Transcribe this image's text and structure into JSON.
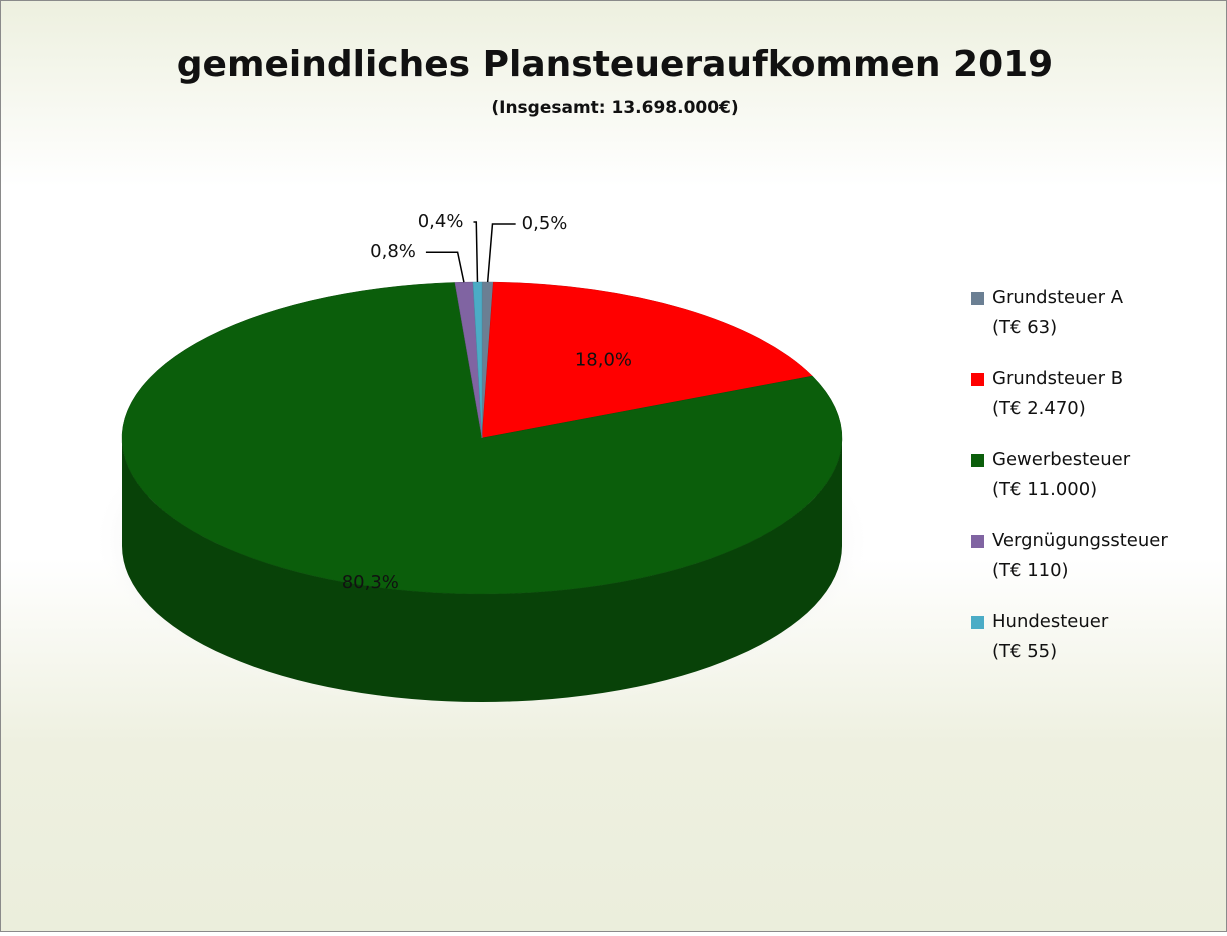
{
  "chart_data": {
    "type": "pie",
    "title": "gemeindliches Plansteueraufkommen 2019",
    "subtitle": "(Insgesamt: 13.698.000€)",
    "categories": [
      "Grundsteuer A",
      "Grundsteuer B",
      "Gewerbesteuer",
      "Vergnügungssteuer",
      "Hundesteuer"
    ],
    "legend_details": [
      "(T€ 63)",
      "(T€ 2.470)",
      "(T€ 11.000)",
      "(T€ 110)",
      "(T€ 55)"
    ],
    "values": [
      0.5,
      18.0,
      80.3,
      0.8,
      0.4
    ],
    "value_labels": [
      "0,5%",
      "18,0%",
      "80,3%",
      "0,8%",
      "0,4%"
    ],
    "colors": [
      "#6b7f93",
      "#ff0000",
      "#0b5e0b",
      "#8064a2",
      "#4bacc6"
    ],
    "legend": "right"
  }
}
